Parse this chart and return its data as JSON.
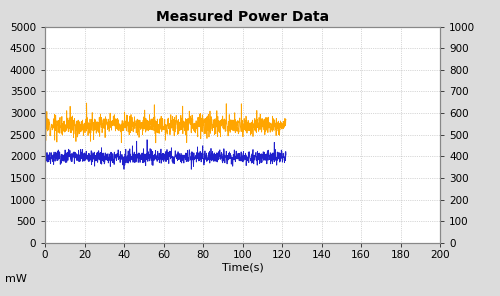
{
  "title": "Measured Power Data",
  "xlabel": "Time(s)",
  "ylabel_left": "mW",
  "xlim": [
    0,
    200
  ],
  "ylim_left": [
    0,
    5000
  ],
  "ylim_right": [
    0,
    1000
  ],
  "xticks": [
    0,
    20,
    40,
    60,
    80,
    100,
    120,
    140,
    160,
    180,
    200
  ],
  "yticks_left": [
    0,
    500,
    1000,
    1500,
    2000,
    2500,
    3000,
    3500,
    4000,
    4500,
    5000
  ],
  "yticks_right": [
    0,
    100,
    200,
    300,
    400,
    500,
    600,
    700,
    800,
    900,
    1000
  ],
  "orange_mean": 2720,
  "orange_std": 110,
  "blue_mean": 1980,
  "blue_std": 75,
  "n_points": 1200,
  "time_end": 122,
  "orange_color": "#FFA500",
  "blue_color": "#2020CC",
  "background_color": "#DCDCDC",
  "plot_bg_color": "#FFFFFF",
  "grid_color": "#AAAAAA",
  "title_fontsize": 10,
  "label_fontsize": 8,
  "tick_fontsize": 7.5
}
